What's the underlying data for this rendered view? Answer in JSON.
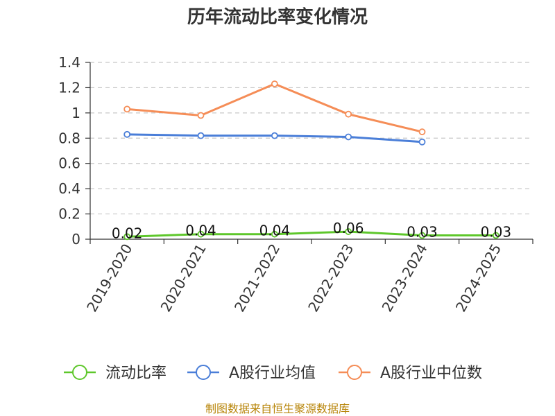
{
  "chart_data": {
    "type": "line",
    "title": "历年流动比率变化情况",
    "categories": [
      "2019-2020",
      "2020-2021",
      "2021-2022",
      "2022-2023",
      "2023-2024",
      "2024-2025"
    ],
    "ylim": [
      0,
      1.4
    ],
    "yticks": [
      "0",
      "0.2",
      "0.4",
      "0.6",
      "0.8",
      "1",
      "1.2",
      "1.4"
    ],
    "grid": true,
    "legend_position": "bottom",
    "series": [
      {
        "name": "流动比率",
        "color": "#5ec72b",
        "values": [
          0.02,
          0.04,
          0.04,
          0.06,
          0.03,
          0.03
        ],
        "labels": [
          "0.02",
          "0.04",
          "0.04",
          "0.06",
          "0.03",
          "0.03"
        ]
      },
      {
        "name": "A股行业均值",
        "color": "#4a7ed8",
        "values": [
          0.83,
          0.82,
          0.82,
          0.81,
          0.77,
          null
        ]
      },
      {
        "name": "A股行业中位数",
        "color": "#f58d57",
        "values": [
          1.03,
          0.98,
          1.23,
          0.99,
          0.85,
          null
        ]
      }
    ]
  },
  "source": "制图数据来自恒生聚源数据库"
}
